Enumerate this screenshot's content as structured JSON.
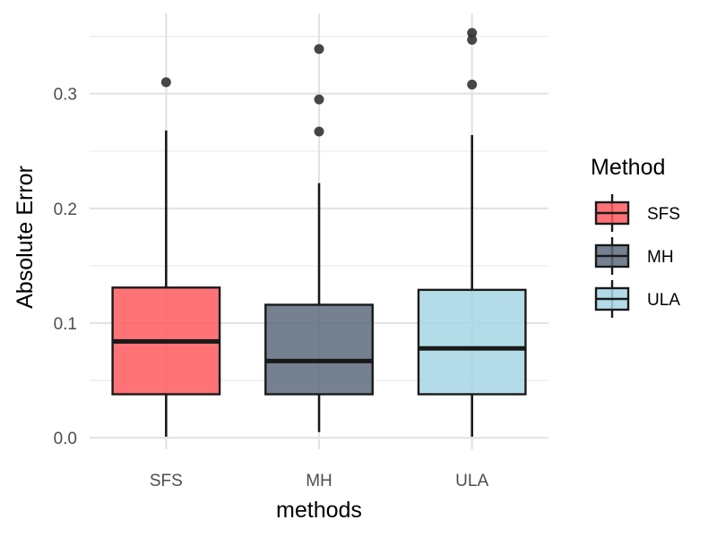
{
  "chart_data": {
    "type": "boxplot",
    "xlabel": "methods",
    "ylabel": "Absolute Error",
    "ylim": [
      -0.01,
      0.37
    ],
    "yticks": [
      0.0,
      0.1,
      0.2,
      0.3
    ],
    "ytick_labels": [
      "0.0",
      "0.1",
      "0.2",
      "0.3"
    ],
    "categories": [
      "SFS",
      "MH",
      "ULA"
    ],
    "grid": true,
    "legend": {
      "title": "Method",
      "position": "right",
      "entries": [
        "SFS",
        "MH",
        "ULA"
      ]
    },
    "series": [
      {
        "category": "SFS",
        "color": "#ff5a5f",
        "whisker_low": 0.001,
        "q1": 0.038,
        "median": 0.084,
        "q3": 0.131,
        "whisker_high": 0.268,
        "outliers": [
          0.31
        ]
      },
      {
        "category": "MH",
        "color": "#5d6b7d",
        "whisker_low": 0.005,
        "q1": 0.038,
        "median": 0.067,
        "q3": 0.116,
        "whisker_high": 0.222,
        "outliers": [
          0.339,
          0.295,
          0.267
        ]
      },
      {
        "category": "ULA",
        "color": "#a6d6e4",
        "whisker_low": 0.001,
        "q1": 0.038,
        "median": 0.078,
        "q3": 0.129,
        "whisker_high": 0.264,
        "outliers": [
          0.353,
          0.347,
          0.308
        ]
      }
    ]
  }
}
